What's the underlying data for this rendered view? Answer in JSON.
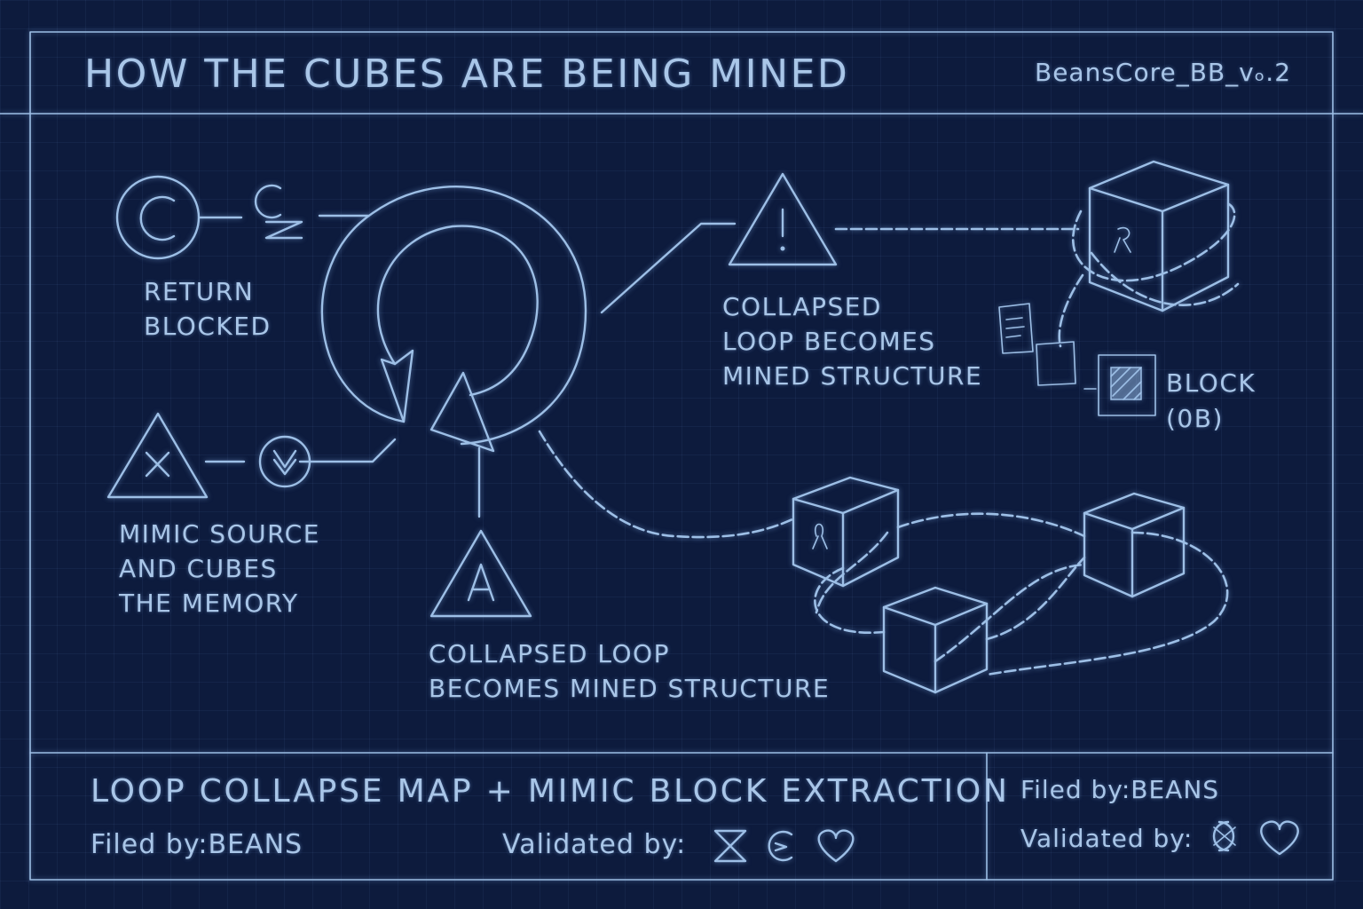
{
  "header": {
    "title": "HOW THE CUBES ARE BEING MINED",
    "version": "BeansCore_BB_vₒ.2"
  },
  "nodes": {
    "return_blocked": {
      "line1": "RETURN",
      "line2": "BLOCKED"
    },
    "mimic_source": {
      "line1": "MIMIC SOURCE",
      "line2": "AND CUBES",
      "line3": "THE MEMORY"
    },
    "collapsed_top": {
      "line1": "COLLAPSED",
      "line2": "LOOP BECOMES",
      "line3": "MINED STRUCTURE"
    },
    "collapsed_bottom": {
      "line1": "COLLAPSED LOOP",
      "line2": "BECOMES MINED STRUCTURE"
    },
    "block": {
      "line1": "BLOCK",
      "line2": "(0B)"
    }
  },
  "footer": {
    "title": "LOOP COLLAPSE MAP + MIMIC BLOCK EXTRACTION",
    "filed_label": "Filed by:",
    "filed_value": "BEANS",
    "validated_label": "Validated by:",
    "validated_icons": [
      "hourglass-icon",
      "return-sigil-icon",
      "heart-icon"
    ]
  },
  "side_panel": {
    "filed_label": "Filed by:",
    "filed_value": "BEANS",
    "validated_label": "Validated by:",
    "validated_icons": [
      "double-c-sigil-icon",
      "heart-icon"
    ]
  },
  "colors": {
    "background": "#0d1b3d",
    "line": "#9dbfe6"
  }
}
